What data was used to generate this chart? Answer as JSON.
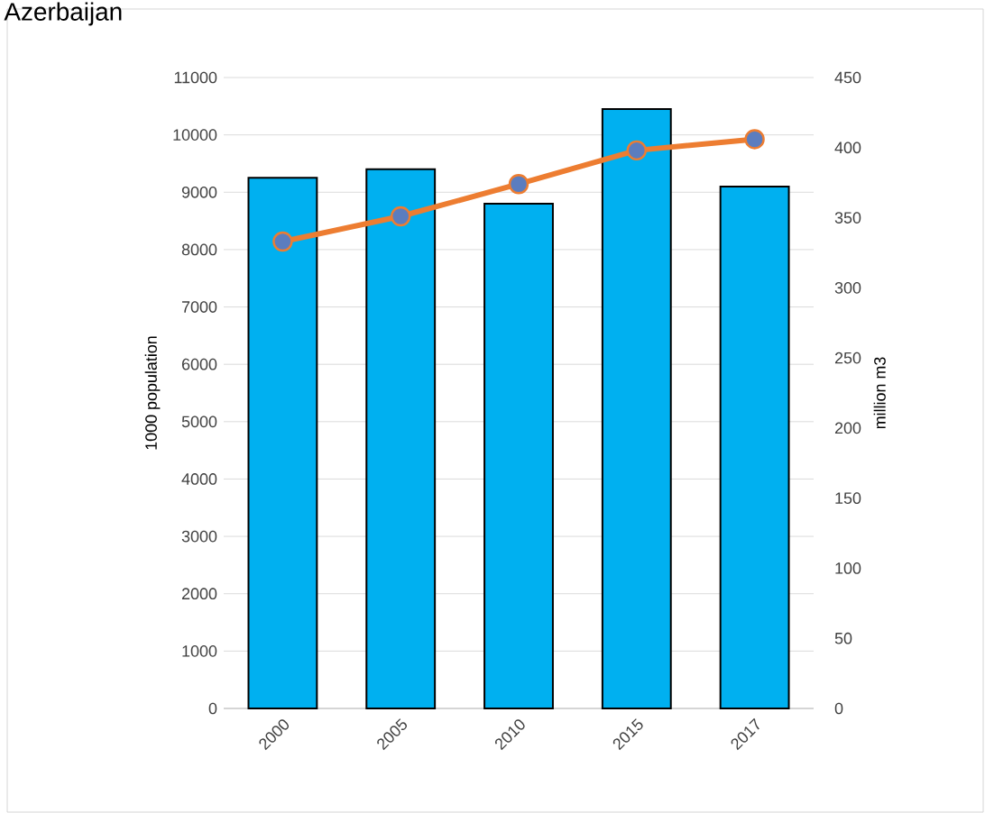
{
  "chart_data": {
    "type": "bar",
    "title": "Azerbaijan",
    "categories": [
      "2000",
      "2005",
      "2010",
      "2015",
      "2017"
    ],
    "series": [
      {
        "color": "#00b0f0",
        "values": [
          9250,
          9400,
          8800,
          10450,
          9100
        ]
      },
      {
        "type": "line",
        "color": "#ed7d31",
        "axis": "y2",
        "marker": "circle",
        "values": [
          333,
          351,
          374,
          398,
          406
        ]
      }
    ],
    "ylabel": "1000 population",
    "y2label": "million m3",
    "ylim": [
      0,
      11000
    ],
    "yticks": [
      0,
      1000,
      2000,
      3000,
      4000,
      5000,
      6000,
      7000,
      8000,
      9000,
      10000,
      11000
    ],
    "y2lim": [
      0,
      450
    ],
    "y2ticks": [
      0,
      50,
      100,
      150,
      200,
      250,
      300,
      350,
      400,
      450
    ],
    "grid": "y"
  }
}
